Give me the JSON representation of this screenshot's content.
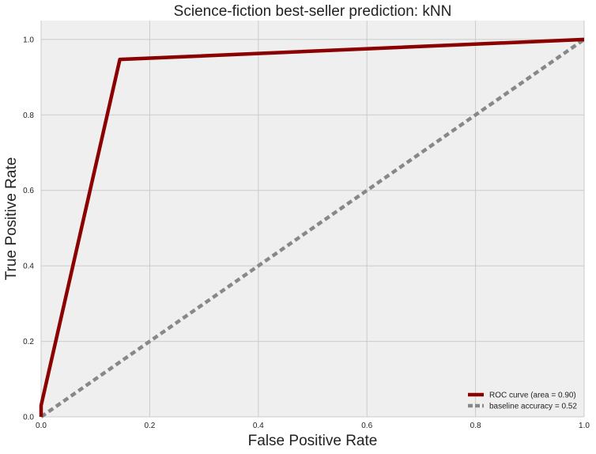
{
  "chart_data": {
    "type": "line",
    "title": "Science-fiction best-seller prediction: kNN",
    "xlabel": "False Positive Rate",
    "ylabel": "True Positive Rate",
    "xlim": [
      0.0,
      1.0
    ],
    "ylim": [
      0.0,
      1.05
    ],
    "xticks": [
      "0.0",
      "0.2",
      "0.4",
      "0.6",
      "0.8",
      "1.0"
    ],
    "yticks": [
      "0.0",
      "0.2",
      "0.4",
      "0.6",
      "0.8",
      "1.0"
    ],
    "grid": true,
    "legend_position": "lower-right",
    "series": [
      {
        "name": "ROC curve (area = 0.90)",
        "color": "#8b0000",
        "style": "solid",
        "x": [
          0.0,
          0.0,
          0.145,
          1.0
        ],
        "y": [
          0.0,
          0.03,
          0.947,
          1.0
        ]
      },
      {
        "name": "baseline accuracy = 0.52",
        "color": "#888888",
        "style": "dashed",
        "x": [
          0.0,
          1.0
        ],
        "y": [
          0.0,
          1.0
        ]
      }
    ]
  },
  "colors": {
    "plot_background": "#efefef",
    "grid": "#cbcbcb"
  }
}
